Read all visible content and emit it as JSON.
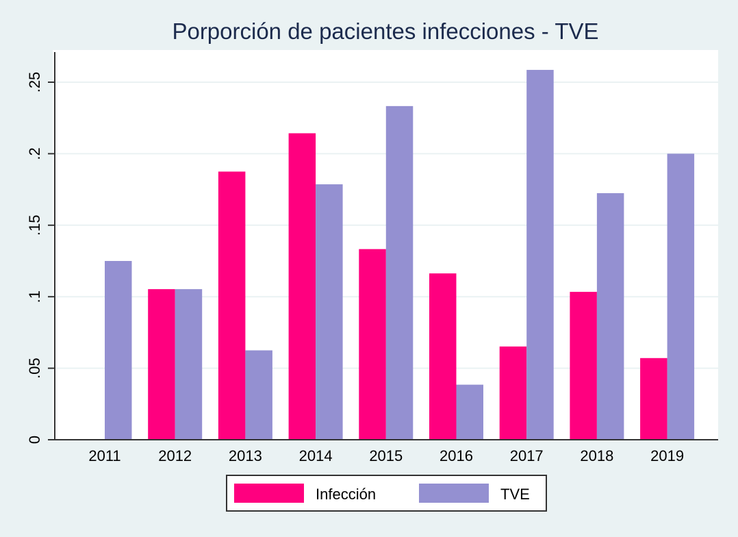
{
  "chart_data": {
    "type": "bar",
    "title": "Porporción de pacientes infecciones - TVE",
    "xlabel": "",
    "ylabel": "",
    "categories": [
      "2011",
      "2012",
      "2013",
      "2014",
      "2015",
      "2016",
      "2017",
      "2018",
      "2019"
    ],
    "series": [
      {
        "name": "Infección",
        "color": "#ff007f",
        "values": [
          0,
          0.1053,
          0.1875,
          0.2143,
          0.1333,
          0.1163,
          0.0652,
          0.1034,
          0.0571
        ]
      },
      {
        "name": "TVE",
        "color": "#9490d1",
        "values": [
          0.125,
          0.1053,
          0.0625,
          0.1786,
          0.2333,
          0.0385,
          0.2586,
          0.1724,
          0.2
        ]
      }
    ],
    "ylim": [
      0,
      0.27
    ],
    "yticks": [
      0,
      0.05,
      0.1,
      0.15,
      0.2,
      0.25
    ],
    "ytick_labels": [
      "0",
      ".05",
      ".1",
      ".15",
      ".2",
      ".25"
    ],
    "grid": true,
    "legend_position": "bottom"
  },
  "colors": {
    "background": "#eaf2f3",
    "plot_background": "#ffffff",
    "gridline": "#eaf2f3",
    "title": "#1c2b4d",
    "axis": "#333333"
  }
}
